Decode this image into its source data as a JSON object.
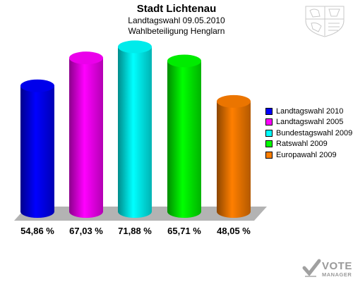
{
  "header": {
    "title": "Stadt Lichtenau",
    "subtitle1": "Landtagswahl 09.05.2010",
    "subtitle2": "Wahlbeteiligung Henglarn"
  },
  "chart_data": {
    "type": "bar",
    "title": "Stadt Lichtenau",
    "subtitle": "Landtagswahl 09.05.2010 – Wahlbeteiligung Henglarn",
    "categories": [
      "Landtagswahl 2010",
      "Landtagswahl 2005",
      "Bundestagswahl 2009",
      "Ratswahl 2009",
      "Europawahl 2009"
    ],
    "values": [
      54.86,
      67.03,
      71.88,
      65.71,
      48.05
    ],
    "value_labels": [
      "54,86 %",
      "67,03 %",
      "71,88 %",
      "65,71 %",
      "48,05 %"
    ],
    "colors": [
      "#0000ff",
      "#ff00ff",
      "#00ffff",
      "#00ff00",
      "#ff7f00"
    ],
    "ylim": [
      0,
      100
    ],
    "grid": false,
    "legend_position": "right",
    "bar_style": "3d-cylinder"
  },
  "watermark": {
    "line1": "VOTE",
    "line2": "MANAGER"
  }
}
